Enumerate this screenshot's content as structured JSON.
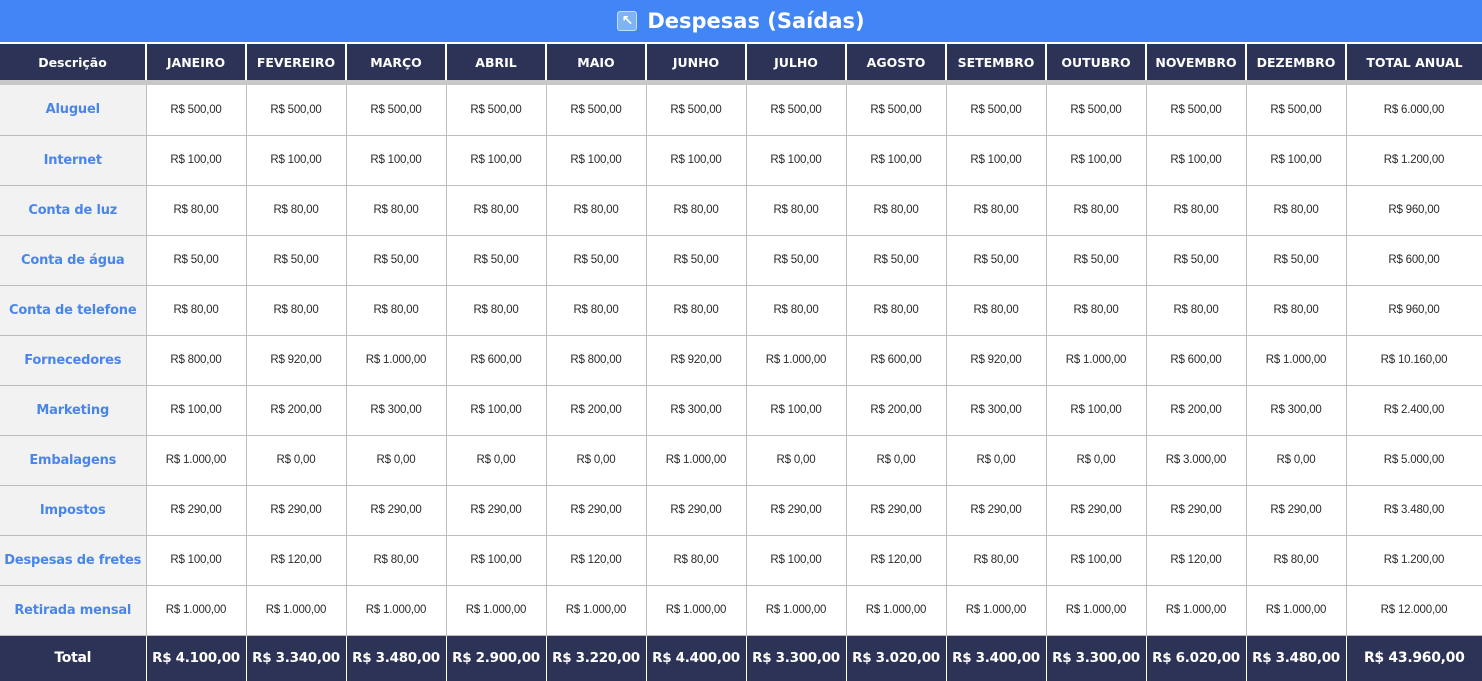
{
  "title": {
    "icon": "↖",
    "icon_name": "arrow-up-left-icon",
    "text": "Despesas (Saídas)"
  },
  "colors": {
    "title_bg": "#4285f4",
    "header_bg": "#2c3356",
    "desc_text": "#4a86e8",
    "desc_bg": "#f2f2f2"
  },
  "table": {
    "headers": [
      "Descrição",
      "JANEIRO",
      "FEVEREIRO",
      "MARÇO",
      "ABRIL",
      "MAIO",
      "JUNHO",
      "JULHO",
      "AGOSTO",
      "SETEMBRO",
      "OUTUBRO",
      "NOVEMBRO",
      "DEZEMBRO",
      "TOTAL ANUAL"
    ],
    "rows": [
      {
        "label": "Aluguel",
        "values": [
          "R$ 500,00",
          "R$ 500,00",
          "R$ 500,00",
          "R$ 500,00",
          "R$ 500,00",
          "R$ 500,00",
          "R$ 500,00",
          "R$ 500,00",
          "R$ 500,00",
          "R$ 500,00",
          "R$ 500,00",
          "R$ 500,00",
          "R$ 6.000,00"
        ]
      },
      {
        "label": "Internet",
        "values": [
          "R$ 100,00",
          "R$ 100,00",
          "R$ 100,00",
          "R$ 100,00",
          "R$ 100,00",
          "R$ 100,00",
          "R$ 100,00",
          "R$ 100,00",
          "R$ 100,00",
          "R$ 100,00",
          "R$ 100,00",
          "R$ 100,00",
          "R$ 1.200,00"
        ]
      },
      {
        "label": "Conta de luz",
        "values": [
          "R$ 80,00",
          "R$ 80,00",
          "R$ 80,00",
          "R$ 80,00",
          "R$ 80,00",
          "R$ 80,00",
          "R$ 80,00",
          "R$ 80,00",
          "R$ 80,00",
          "R$ 80,00",
          "R$ 80,00",
          "R$ 80,00",
          "R$ 960,00"
        ]
      },
      {
        "label": "Conta de água",
        "values": [
          "R$ 50,00",
          "R$ 50,00",
          "R$ 50,00",
          "R$ 50,00",
          "R$ 50,00",
          "R$ 50,00",
          "R$ 50,00",
          "R$ 50,00",
          "R$ 50,00",
          "R$ 50,00",
          "R$ 50,00",
          "R$ 50,00",
          "R$ 600,00"
        ]
      },
      {
        "label": "Conta de telefone",
        "values": [
          "R$ 80,00",
          "R$ 80,00",
          "R$ 80,00",
          "R$ 80,00",
          "R$ 80,00",
          "R$ 80,00",
          "R$ 80,00",
          "R$ 80,00",
          "R$ 80,00",
          "R$ 80,00",
          "R$ 80,00",
          "R$ 80,00",
          "R$ 960,00"
        ]
      },
      {
        "label": "Fornecedores",
        "values": [
          "R$ 800,00",
          "R$ 920,00",
          "R$ 1.000,00",
          "R$ 600,00",
          "R$ 800,00",
          "R$ 920,00",
          "R$ 1.000,00",
          "R$ 600,00",
          "R$ 920,00",
          "R$ 1.000,00",
          "R$ 600,00",
          "R$ 1.000,00",
          "R$ 10.160,00"
        ]
      },
      {
        "label": "Marketing",
        "values": [
          "R$ 100,00",
          "R$ 200,00",
          "R$ 300,00",
          "R$ 100,00",
          "R$ 200,00",
          "R$ 300,00",
          "R$ 100,00",
          "R$ 200,00",
          "R$ 300,00",
          "R$ 100,00",
          "R$ 200,00",
          "R$ 300,00",
          "R$ 2.400,00"
        ]
      },
      {
        "label": "Embalagens",
        "values": [
          "R$ 1.000,00",
          "R$ 0,00",
          "R$ 0,00",
          "R$ 0,00",
          "R$ 0,00",
          "R$ 1.000,00",
          "R$ 0,00",
          "R$ 0,00",
          "R$ 0,00",
          "R$ 0,00",
          "R$ 3.000,00",
          "R$ 0,00",
          "R$ 5.000,00"
        ]
      },
      {
        "label": "Impostos",
        "values": [
          "R$ 290,00",
          "R$ 290,00",
          "R$ 290,00",
          "R$ 290,00",
          "R$ 290,00",
          "R$ 290,00",
          "R$ 290,00",
          "R$ 290,00",
          "R$ 290,00",
          "R$ 290,00",
          "R$ 290,00",
          "R$ 290,00",
          "R$ 3.480,00"
        ]
      },
      {
        "label": "Despesas de fretes",
        "values": [
          "R$ 100,00",
          "R$ 120,00",
          "R$ 80,00",
          "R$ 100,00",
          "R$ 120,00",
          "R$ 80,00",
          "R$ 100,00",
          "R$ 120,00",
          "R$ 80,00",
          "R$ 100,00",
          "R$ 120,00",
          "R$ 80,00",
          "R$ 1.200,00"
        ]
      },
      {
        "label": "Retirada mensal",
        "values": [
          "R$ 1.000,00",
          "R$ 1.000,00",
          "R$ 1.000,00",
          "R$ 1.000,00",
          "R$ 1.000,00",
          "R$ 1.000,00",
          "R$ 1.000,00",
          "R$ 1.000,00",
          "R$ 1.000,00",
          "R$ 1.000,00",
          "R$ 1.000,00",
          "R$ 1.000,00",
          "R$ 12.000,00"
        ]
      }
    ],
    "total": {
      "label": "Total",
      "values": [
        "R$ 4.100,00",
        "R$ 3.340,00",
        "R$ 3.480,00",
        "R$ 2.900,00",
        "R$ 3.220,00",
        "R$ 4.400,00",
        "R$ 3.300,00",
        "R$ 3.020,00",
        "R$ 3.400,00",
        "R$ 3.300,00",
        "R$ 6.020,00",
        "R$ 3.480,00",
        "R$ 43.960,00"
      ]
    }
  }
}
